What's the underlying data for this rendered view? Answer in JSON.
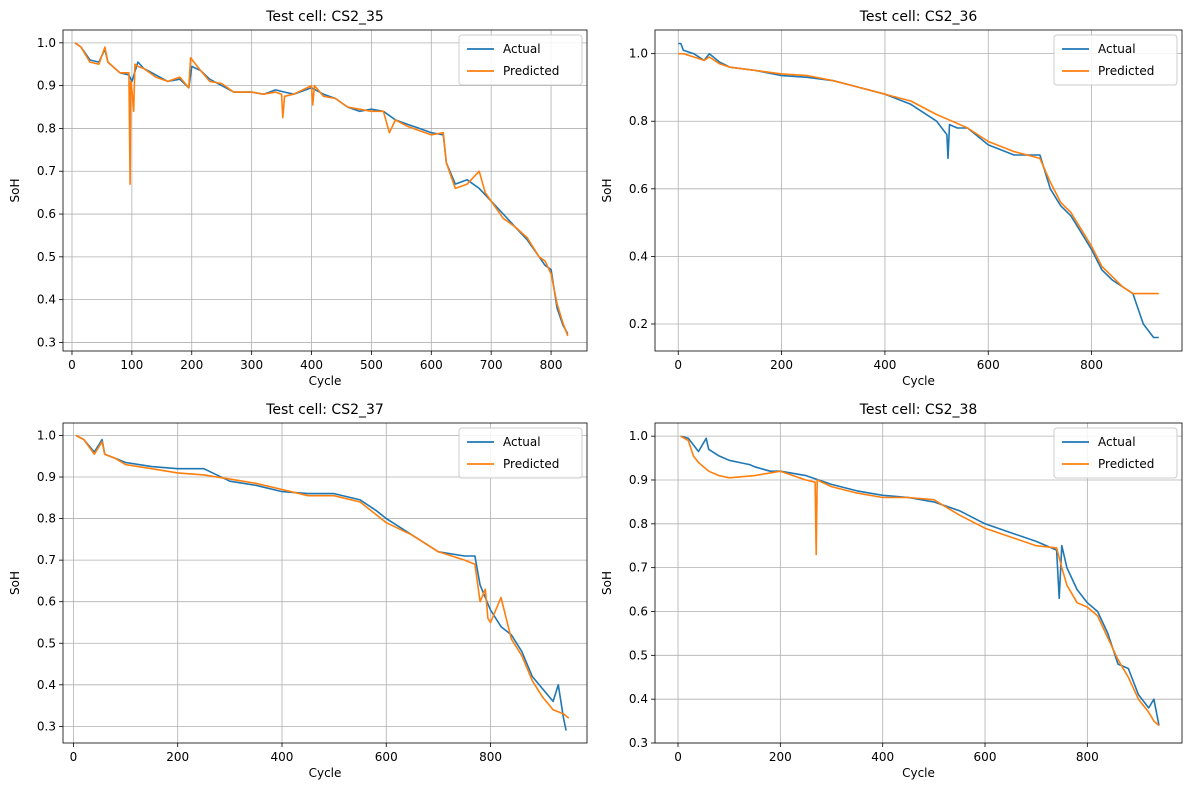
{
  "legend": [
    "Actual",
    "Predicted"
  ],
  "colors": {
    "actual": "#1f77b4",
    "predicted": "#ff7f0e",
    "grid": "#b0b0b0"
  },
  "chart_data": [
    {
      "type": "line",
      "title": "Test cell: CS2_35",
      "xlabel": "Cycle",
      "ylabel": "SoH",
      "xlim": [
        -15,
        860
      ],
      "ylim": [
        0.28,
        1.03
      ],
      "xticks": [
        0,
        100,
        200,
        300,
        400,
        500,
        600,
        700,
        800
      ],
      "yticks": [
        0.3,
        0.4,
        0.5,
        0.6,
        0.7,
        0.8,
        0.9,
        1.0
      ],
      "ytick_labels": [
        "0.3",
        "0.4",
        "0.5",
        "0.6",
        "0.7",
        "0.8",
        "0.9",
        "1.0"
      ],
      "grid": true,
      "legend_position": "top-right",
      "series": [
        {
          "name": "Actual",
          "x": [
            5,
            15,
            30,
            45,
            55,
            60,
            80,
            95,
            100,
            110,
            120,
            140,
            160,
            180,
            195,
            200,
            215,
            230,
            250,
            270,
            300,
            320,
            340,
            355,
            370,
            400,
            420,
            440,
            460,
            480,
            500,
            520,
            540,
            560,
            580,
            600,
            620,
            625,
            640,
            660,
            680,
            700,
            720,
            740,
            760,
            780,
            790,
            800,
            810,
            820,
            828
          ],
          "y": [
            1.0,
            0.99,
            0.96,
            0.955,
            0.985,
            0.955,
            0.93,
            0.925,
            0.91,
            0.955,
            0.94,
            0.925,
            0.91,
            0.915,
            0.895,
            0.945,
            0.935,
            0.915,
            0.9,
            0.885,
            0.885,
            0.88,
            0.89,
            0.885,
            0.88,
            0.895,
            0.88,
            0.87,
            0.85,
            0.84,
            0.845,
            0.84,
            0.82,
            0.81,
            0.8,
            0.79,
            0.785,
            0.72,
            0.67,
            0.68,
            0.66,
            0.63,
            0.6,
            0.57,
            0.54,
            0.5,
            0.48,
            0.47,
            0.38,
            0.34,
            0.32
          ]
        },
        {
          "name": "Predicted",
          "x": [
            5,
            15,
            30,
            45,
            55,
            60,
            80,
            95,
            97,
            98,
            100,
            103,
            105,
            110,
            120,
            140,
            160,
            180,
            195,
            198,
            215,
            230,
            250,
            270,
            300,
            320,
            340,
            350,
            352,
            355,
            370,
            400,
            402,
            405,
            420,
            440,
            460,
            480,
            500,
            520,
            530,
            540,
            560,
            580,
            600,
            620,
            625,
            640,
            660,
            680,
            690,
            700,
            720,
            740,
            760,
            780,
            790,
            800,
            810,
            820,
            828
          ],
          "y": [
            1.0,
            0.99,
            0.955,
            0.95,
            0.99,
            0.955,
            0.93,
            0.93,
            0.67,
            0.91,
            0.89,
            0.84,
            0.95,
            0.945,
            0.94,
            0.92,
            0.91,
            0.92,
            0.895,
            0.965,
            0.935,
            0.91,
            0.905,
            0.885,
            0.885,
            0.88,
            0.885,
            0.88,
            0.825,
            0.875,
            0.88,
            0.9,
            0.855,
            0.9,
            0.875,
            0.87,
            0.85,
            0.845,
            0.84,
            0.84,
            0.79,
            0.82,
            0.805,
            0.795,
            0.785,
            0.79,
            0.72,
            0.66,
            0.67,
            0.7,
            0.65,
            0.63,
            0.59,
            0.57,
            0.545,
            0.5,
            0.49,
            0.46,
            0.39,
            0.345,
            0.315
          ]
        }
      ]
    },
    {
      "type": "line",
      "title": "Test cell: CS2_36",
      "xlabel": "Cycle",
      "ylabel": "SoH",
      "xlim": [
        -45,
        975
      ],
      "ylim": [
        0.12,
        1.07
      ],
      "xticks": [
        0,
        200,
        400,
        600,
        800
      ],
      "yticks": [
        0.2,
        0.4,
        0.6,
        0.8,
        1.0
      ],
      "ytick_labels": [
        "0.2",
        "0.4",
        "0.6",
        "0.8",
        "1.0"
      ],
      "grid": true,
      "legend_position": "top-right",
      "series": [
        {
          "name": "Actual",
          "x": [
            0,
            5,
            10,
            30,
            50,
            60,
            80,
            100,
            150,
            200,
            250,
            300,
            350,
            400,
            450,
            500,
            520,
            522,
            525,
            540,
            560,
            600,
            650,
            700,
            720,
            740,
            760,
            780,
            800,
            820,
            840,
            860,
            880,
            900,
            920,
            930
          ],
          "y": [
            1.03,
            1.03,
            1.01,
            1.0,
            0.98,
            1.0,
            0.975,
            0.96,
            0.95,
            0.935,
            0.93,
            0.92,
            0.9,
            0.88,
            0.85,
            0.8,
            0.76,
            0.69,
            0.79,
            0.78,
            0.78,
            0.73,
            0.7,
            0.7,
            0.6,
            0.55,
            0.52,
            0.47,
            0.42,
            0.36,
            0.33,
            0.31,
            0.29,
            0.2,
            0.16,
            0.16
          ]
        },
        {
          "name": "Predicted",
          "x": [
            0,
            10,
            30,
            50,
            60,
            80,
            100,
            150,
            200,
            250,
            300,
            350,
            400,
            450,
            500,
            530,
            560,
            600,
            650,
            700,
            720,
            740,
            760,
            780,
            800,
            820,
            840,
            860,
            880,
            900,
            930
          ],
          "y": [
            1.0,
            1.0,
            0.99,
            0.98,
            0.99,
            0.97,
            0.96,
            0.95,
            0.94,
            0.935,
            0.92,
            0.9,
            0.88,
            0.86,
            0.82,
            0.8,
            0.78,
            0.74,
            0.71,
            0.69,
            0.62,
            0.56,
            0.53,
            0.48,
            0.43,
            0.37,
            0.34,
            0.31,
            0.29,
            0.29,
            0.29
          ]
        }
      ]
    },
    {
      "type": "line",
      "title": "Test cell: CS2_37",
      "xlabel": "Cycle",
      "ylabel": "SoH",
      "xlim": [
        -20,
        985
      ],
      "ylim": [
        0.26,
        1.03
      ],
      "xticks": [
        0,
        200,
        400,
        600,
        800
      ],
      "yticks": [
        0.3,
        0.4,
        0.5,
        0.6,
        0.7,
        0.8,
        0.9,
        1.0
      ],
      "ytick_labels": [
        "0.3",
        "0.4",
        "0.5",
        "0.6",
        "0.7",
        "0.8",
        "0.9",
        "1.0"
      ],
      "grid": true,
      "legend_position": "top-right",
      "series": [
        {
          "name": "Actual",
          "x": [
            5,
            20,
            40,
            55,
            60,
            80,
            100,
            150,
            200,
            250,
            300,
            350,
            400,
            450,
            500,
            550,
            580,
            600,
            650,
            700,
            750,
            770,
            780,
            800,
            820,
            840,
            860,
            880,
            900,
            920,
            930,
            940,
            945
          ],
          "y": [
            1.0,
            0.99,
            0.96,
            0.99,
            0.955,
            0.945,
            0.935,
            0.925,
            0.92,
            0.92,
            0.89,
            0.88,
            0.865,
            0.86,
            0.86,
            0.845,
            0.82,
            0.8,
            0.76,
            0.72,
            0.71,
            0.71,
            0.64,
            0.58,
            0.54,
            0.52,
            0.48,
            0.42,
            0.39,
            0.36,
            0.4,
            0.32,
            0.29
          ]
        },
        {
          "name": "Predicted",
          "x": [
            5,
            20,
            40,
            55,
            60,
            80,
            100,
            150,
            200,
            250,
            300,
            350,
            400,
            450,
            500,
            550,
            580,
            600,
            650,
            700,
            750,
            770,
            780,
            790,
            795,
            800,
            820,
            840,
            860,
            880,
            900,
            920,
            940,
            950
          ],
          "y": [
            1.0,
            0.99,
            0.955,
            0.985,
            0.955,
            0.945,
            0.93,
            0.92,
            0.91,
            0.905,
            0.895,
            0.885,
            0.87,
            0.855,
            0.855,
            0.84,
            0.81,
            0.79,
            0.76,
            0.72,
            0.7,
            0.69,
            0.6,
            0.63,
            0.56,
            0.55,
            0.61,
            0.51,
            0.47,
            0.41,
            0.37,
            0.34,
            0.33,
            0.32
          ]
        }
      ]
    },
    {
      "type": "line",
      "title": "Test cell: CS2_38",
      "xlabel": "Cycle",
      "ylabel": "SoH",
      "xlim": [
        -45,
        985
      ],
      "ylim": [
        0.3,
        1.03
      ],
      "xticks": [
        0,
        200,
        400,
        600,
        800
      ],
      "yticks": [
        0.3,
        0.4,
        0.5,
        0.6,
        0.7,
        0.8,
        0.9,
        1.0
      ],
      "ytick_labels": [
        "0.3",
        "0.4",
        "0.5",
        "0.6",
        "0.7",
        "0.8",
        "0.9",
        "1.0"
      ],
      "grid": true,
      "legend_position": "top-right",
      "series": [
        {
          "name": "Actual",
          "x": [
            5,
            20,
            40,
            55,
            60,
            80,
            100,
            120,
            140,
            150,
            180,
            200,
            250,
            300,
            350,
            400,
            450,
            500,
            550,
            600,
            650,
            700,
            740,
            745,
            750,
            760,
            780,
            800,
            820,
            840,
            860,
            880,
            900,
            920,
            930,
            940
          ],
          "y": [
            1.0,
            0.995,
            0.965,
            0.995,
            0.97,
            0.955,
            0.945,
            0.94,
            0.935,
            0.93,
            0.92,
            0.92,
            0.91,
            0.89,
            0.875,
            0.865,
            0.86,
            0.85,
            0.83,
            0.8,
            0.78,
            0.76,
            0.74,
            0.63,
            0.75,
            0.7,
            0.65,
            0.62,
            0.6,
            0.55,
            0.48,
            0.47,
            0.41,
            0.38,
            0.4,
            0.34
          ]
        },
        {
          "name": "Predicted",
          "x": [
            5,
            20,
            30,
            40,
            60,
            80,
            100,
            150,
            200,
            250,
            268,
            270,
            272,
            300,
            350,
            400,
            450,
            500,
            550,
            600,
            650,
            700,
            740,
            750,
            760,
            780,
            800,
            820,
            840,
            860,
            880,
            900,
            920,
            930,
            940
          ],
          "y": [
            1.0,
            0.99,
            0.955,
            0.94,
            0.92,
            0.91,
            0.905,
            0.91,
            0.92,
            0.9,
            0.895,
            0.73,
            0.9,
            0.885,
            0.87,
            0.86,
            0.86,
            0.855,
            0.82,
            0.79,
            0.77,
            0.75,
            0.745,
            0.7,
            0.66,
            0.62,
            0.61,
            0.59,
            0.54,
            0.49,
            0.45,
            0.4,
            0.37,
            0.35,
            0.34
          ]
        }
      ]
    }
  ]
}
